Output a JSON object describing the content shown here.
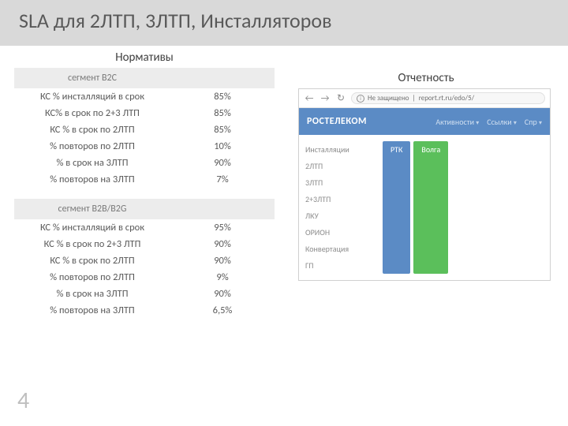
{
  "page": {
    "title": "SLA для 2ЛТП, 3ЛТП, Инсталляторов",
    "number": "4"
  },
  "left": {
    "heading": "Нормативы",
    "segment1_header": "сегмент B2C",
    "segment2_header": "сегмент B2B/B2G",
    "rows_b2c": [
      {
        "metric": "КС % инсталляций в срок",
        "value": "85%"
      },
      {
        "metric": "КС% в срок по 2+3 ЛТП",
        "value": "85%"
      },
      {
        "metric": "КС % в срок по 2ЛТП",
        "value": "85%"
      },
      {
        "metric": "% повторов по 2ЛТП",
        "value": "10%"
      },
      {
        "metric": "% в срок на 3ЛТП",
        "value": "90%"
      },
      {
        "metric": "% повторов на 3ЛТП",
        "value": "7%"
      }
    ],
    "rows_b2b": [
      {
        "metric": "КС % инсталляций в срок",
        "value": "95%"
      },
      {
        "metric": "КС % в срок по 2+3 ЛТП",
        "value": "90%"
      },
      {
        "metric": "КС % в срок по 2ЛТП",
        "value": "90%"
      },
      {
        "metric": "% повторов по 2ЛТП",
        "value": "9%"
      },
      {
        "metric": "% в срок на 3ЛТП",
        "value": "90%"
      },
      {
        "metric": "% повторов на 3ЛТП",
        "value": "6,5%"
      }
    ]
  },
  "right": {
    "heading": "Отчетность",
    "browser": {
      "secure_label": "Не защищено",
      "url": "report.rt.ru/edo/5/"
    },
    "brand": "РОСТЕЛЕКОМ",
    "nav_links": [
      {
        "label": "Активности"
      },
      {
        "label": "Ссылки"
      },
      {
        "label": "Спр"
      }
    ],
    "side_items": [
      "Инсталляции",
      "2ЛТП",
      "3ЛТП",
      "2+3ЛТП",
      "ЛКУ",
      "ОРИОН",
      "Конвертация",
      "ГП"
    ],
    "chips": [
      {
        "label": "РТК",
        "color": "#5b8bc5"
      },
      {
        "label": "Волга",
        "color": "#5bbf5b"
      }
    ]
  },
  "colors": {
    "title_bg": "#d9d9d9",
    "title_text": "#595959",
    "table_header_bg": "#ececec",
    "brand_bg": "#5b8bc5"
  }
}
